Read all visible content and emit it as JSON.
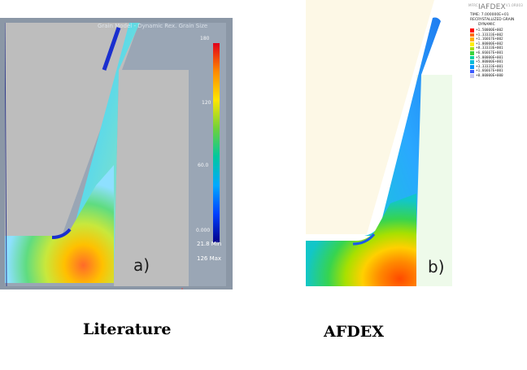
{
  "left": {
    "header": "Grain Model - Dynamic Rex. Grain Size",
    "legend_ticks": [
      "180",
      "120",
      "60.0",
      "0.000"
    ],
    "min_label": "21.8 Min",
    "max_label": "126 Max",
    "panel_label": "a)"
  },
  "right": {
    "logo": "IAFDEX",
    "logo_small_left": "MFRC",
    "logo_small_right": "V1.0R003",
    "time": "TIME: 7.000000E+01",
    "variable": "RECRYSTALLIZED GRAIN",
    "mode": "DYNAMIC",
    "legend": [
      {
        "value": "+1.50000E+002",
        "color": "#ff0000"
      },
      {
        "value": "+1.33333E+002",
        "color": "#ff6a00"
      },
      {
        "value": "+1.16667E+002",
        "color": "#ffb000"
      },
      {
        "value": "+1.00000E+002",
        "color": "#ffee00"
      },
      {
        "value": "+8.33333E+001",
        "color": "#a8e000"
      },
      {
        "value": "+6.66667E+001",
        "color": "#3cd23c"
      },
      {
        "value": "+5.00000E+001",
        "color": "#00d2a0"
      },
      {
        "value": "+5.00000E+001",
        "color": "#00bcd8"
      },
      {
        "value": "+3.33333E+001",
        "color": "#0094ff"
      },
      {
        "value": "+1.66667E+001",
        "color": "#3c5aff"
      },
      {
        "value": "+0.00000E+000",
        "color": "#c8c8f0"
      }
    ],
    "panel_label": "b)"
  },
  "captions": {
    "left": "Literature",
    "right": "AFDEX"
  }
}
